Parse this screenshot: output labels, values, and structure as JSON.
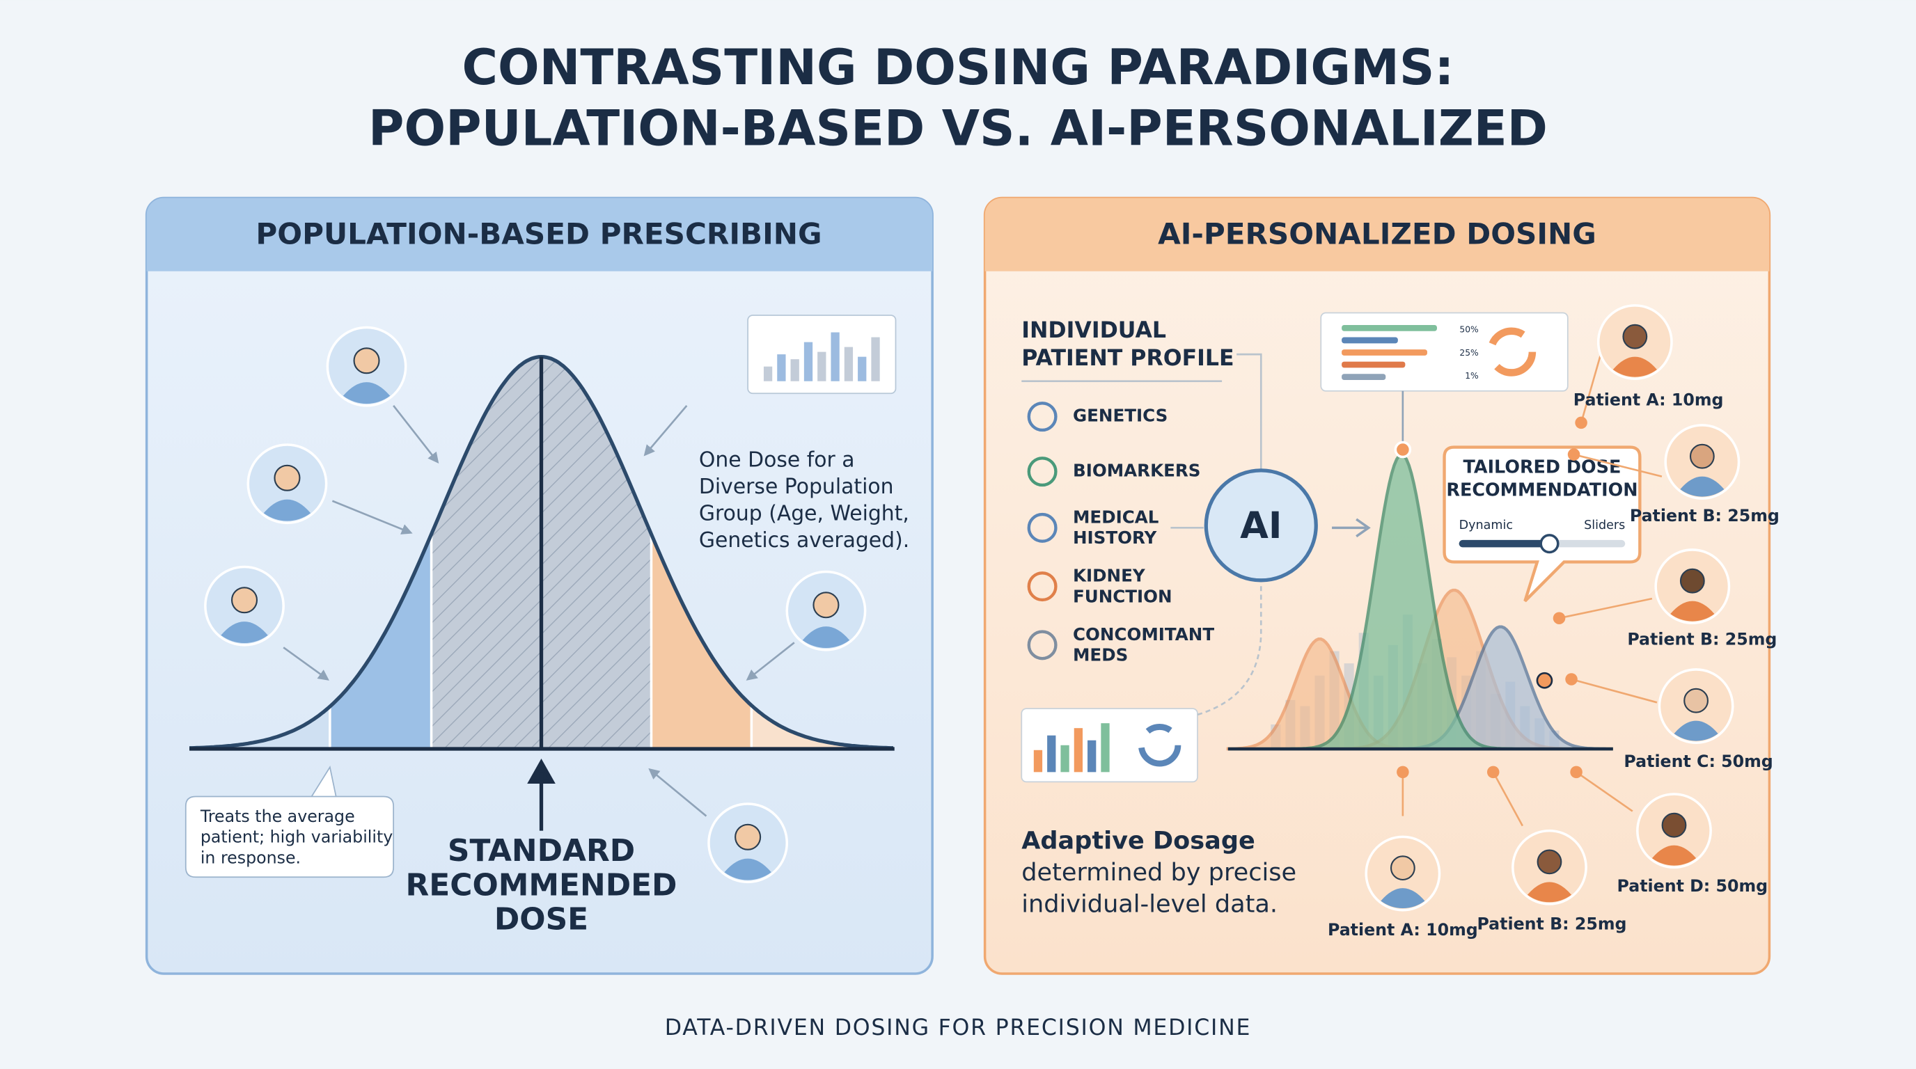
{
  "title": [
    "CONTRASTING DOSING PARADIGMS:",
    "POPULATION-BASED VS. AI-PERSONALIZED"
  ],
  "left_panel": {
    "title": "POPULATION-BASED PRESCRIBING",
    "description": [
      "One Dose for a",
      "Diverse Population",
      "Group (Age, Weight,",
      "Genetics averaged)."
    ],
    "callout": [
      "Treats the average",
      "patient; high variability",
      "in response."
    ],
    "dose_label": [
      "STANDARD",
      "RECOMMENDED",
      "DOSE"
    ]
  },
  "right_panel": {
    "title": "AI-PERSONALIZED DOSING",
    "profile_title": [
      "INDIVIDUAL",
      "PATIENT PROFILE"
    ],
    "factors": [
      [
        "GENETICS"
      ],
      [
        "BIOMARKERS"
      ],
      [
        "MEDICAL",
        "HISTORY"
      ],
      [
        "KIDNEY",
        "FUNCTION"
      ],
      [
        "CONCOMITANT",
        "MEDS"
      ]
    ],
    "ai_label": "AI",
    "widget_labels": [
      "50%",
      "25%",
      "1%"
    ],
    "recommendation": {
      "title": [
        "TAILORED DOSE",
        "RECOMMENDATION"
      ],
      "slider_left": "Dynamic",
      "slider_right": "Sliders"
    },
    "patients": [
      "Patient A: 10mg",
      "Patient B: 25mg",
      "Patient B: 25mg",
      "Patient C: 50mg",
      "Patient D: 50mg",
      "Patient A: 10mg",
      "Patient B: 25mg"
    ],
    "summary_title": "Adaptive Dosage",
    "summary_text": [
      "determined by precise",
      "individual-level data."
    ]
  },
  "footer": "DATA-DRIVEN DOSING FOR PRECISION MEDICINE"
}
